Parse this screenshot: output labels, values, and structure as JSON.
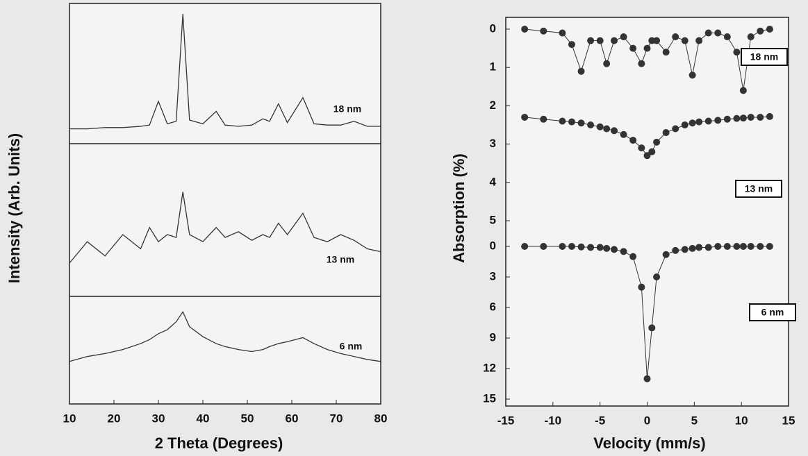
{
  "chart_data": [
    {
      "type": "line",
      "x_label": "2 Theta (Degrees)",
      "y_label": "Intensity (Arb. Units)",
      "x": [
        10,
        14,
        18,
        22,
        26,
        28,
        30,
        32,
        34,
        35.5,
        37,
        40,
        43,
        45,
        48,
        51,
        53.5,
        55,
        57,
        59,
        62.5,
        65,
        68,
        71,
        74,
        77,
        80
      ],
      "xlim": [
        10,
        80
      ],
      "xticks": [
        10,
        20,
        30,
        40,
        50,
        60,
        70,
        80
      ],
      "ylim": [
        0,
        100
      ],
      "series": [
        {
          "name": "18 nm",
          "color": "#333333",
          "values": [
            8,
            8,
            9,
            9,
            10,
            11,
            30,
            12,
            14,
            100,
            15,
            12,
            22,
            11,
            10,
            11,
            16,
            14,
            28,
            13,
            33,
            12,
            11,
            11,
            14,
            10,
            10
          ]
        },
        {
          "name": "13 nm",
          "color": "#333333",
          "values": [
            20,
            35,
            25,
            40,
            30,
            45,
            35,
            40,
            38,
            70,
            40,
            35,
            45,
            38,
            42,
            36,
            40,
            38,
            48,
            40,
            55,
            38,
            35,
            40,
            36,
            30,
            28
          ]
        },
        {
          "name": "6 nm",
          "color": "#333333",
          "values": [
            40,
            45,
            48,
            52,
            58,
            62,
            68,
            72,
            80,
            90,
            75,
            65,
            58,
            55,
            52,
            50,
            52,
            55,
            58,
            60,
            64,
            58,
            52,
            48,
            45,
            42,
            40
          ]
        }
      ]
    },
    {
      "type": "scatter",
      "x_label": "Velocity (mm/s)",
      "y_label": "Absorption (%)",
      "x": [
        -13,
        -11,
        -9,
        -8,
        -7,
        -6,
        -5,
        -4.3,
        -3.5,
        -2.5,
        -1.5,
        -0.6,
        0,
        0.5,
        1,
        2,
        3,
        4,
        4.8,
        5.5,
        6.5,
        7.5,
        8.5,
        9.5,
        10.2,
        11,
        12,
        13
      ],
      "xlim": [
        -15,
        15
      ],
      "xticks": [
        -15,
        -10,
        -5,
        0,
        5,
        10,
        15
      ],
      "ylim": [
        0,
        5
      ],
      "yticks": [
        0,
        1,
        2,
        3,
        4,
        5
      ],
      "y_inverted": true,
      "y2lim": [
        0,
        15
      ],
      "y2ticks": [
        0,
        3,
        6,
        9,
        12,
        15
      ],
      "series": [
        {
          "name": "18 nm",
          "color": "#333333",
          "values": [
            0,
            0.05,
            0.1,
            0.4,
            1.1,
            0.3,
            0.3,
            0.9,
            0.3,
            0.2,
            0.5,
            0.9,
            0.5,
            0.3,
            0.3,
            0.6,
            0.2,
            0.3,
            1.2,
            0.3,
            0.1,
            0.1,
            0.2,
            0.6,
            1.6,
            0.2,
            0.05,
            0
          ]
        },
        {
          "name": "13 nm",
          "color": "#333333",
          "values": [
            2.3,
            2.35,
            2.4,
            2.42,
            2.45,
            2.5,
            2.55,
            2.6,
            2.65,
            2.75,
            2.9,
            3.1,
            3.3,
            3.2,
            2.95,
            2.7,
            2.6,
            2.5,
            2.45,
            2.42,
            2.4,
            2.38,
            2.35,
            2.33,
            2.32,
            2.3,
            2.3,
            2.28
          ]
        },
        {
          "name": "6 nm",
          "color": "#333333",
          "axis": "y2",
          "values": [
            0,
            0,
            0,
            0,
            0.05,
            0.1,
            0.1,
            0.2,
            0.3,
            0.5,
            1,
            4,
            13,
            8,
            3,
            0.8,
            0.4,
            0.3,
            0.2,
            0.1,
            0.1,
            0,
            0,
            0,
            0,
            0,
            0,
            0
          ]
        }
      ]
    }
  ]
}
